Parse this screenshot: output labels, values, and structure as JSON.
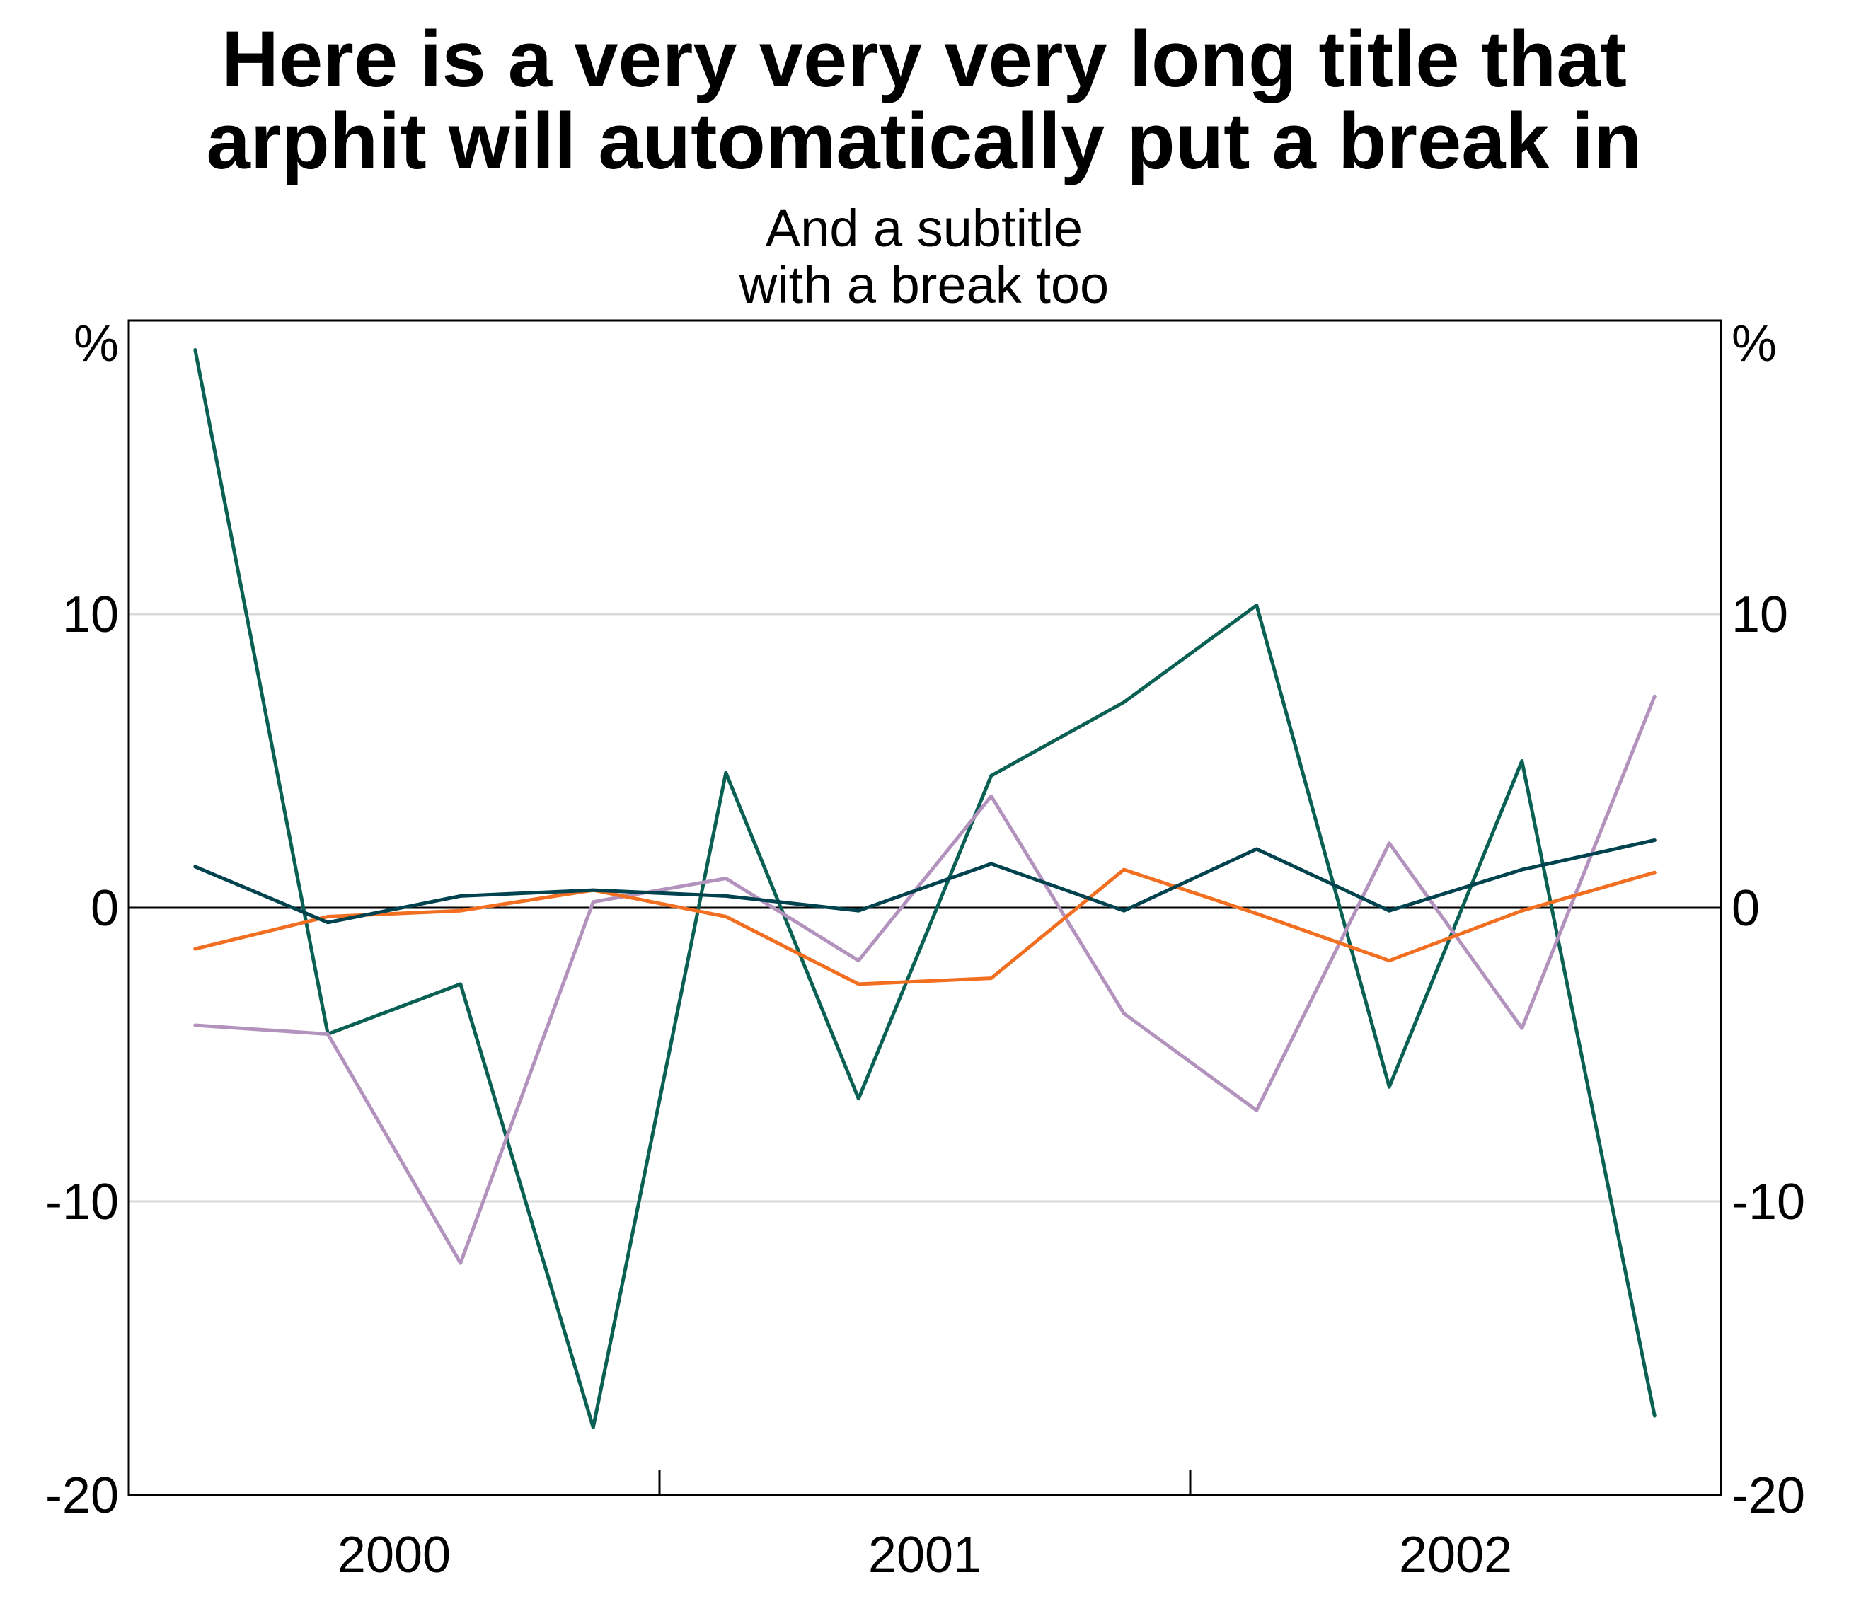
{
  "chart_data": {
    "type": "line",
    "title": [
      "Here is a very very very long title that",
      "arphit will automatically put a break in"
    ],
    "subtitle": [
      "And a subtitle",
      "with a break too"
    ],
    "y_unit_left": "%",
    "y_unit_right": "%",
    "ylim": [
      -20,
      20
    ],
    "y_ticks": [
      -20,
      -10,
      0,
      10
    ],
    "y_tick_labels": [
      "-20",
      "-10",
      "0",
      "10"
    ],
    "x_labels": [
      "2000",
      "2001",
      "2002"
    ],
    "x_periods": 12,
    "grid": true,
    "legend": "none",
    "series": [
      {
        "color": "#0a6153",
        "values": [
          19.0,
          -4.3,
          -2.6,
          -17.7,
          4.6,
          -6.5,
          4.5,
          7.0,
          10.3,
          -6.1,
          5.0,
          -17.3
        ]
      },
      {
        "color": "#b393bd",
        "values": [
          -4.0,
          -4.3,
          -12.1,
          0.2,
          1.0,
          -1.8,
          3.8,
          -3.6,
          -6.9,
          2.2,
          -4.1,
          7.2
        ]
      },
      {
        "color": "#f26f21",
        "values": [
          -1.4,
          -0.3,
          -0.1,
          0.6,
          -0.3,
          -2.6,
          -2.4,
          1.3,
          -0.2,
          -1.8,
          -0.1,
          1.2
        ]
      },
      {
        "color": "#00434f",
        "values": [
          1.4,
          -0.5,
          0.4,
          0.6,
          0.4,
          -0.1,
          1.5,
          -0.1,
          2.0,
          -0.1,
          1.3,
          2.3
        ]
      }
    ]
  }
}
